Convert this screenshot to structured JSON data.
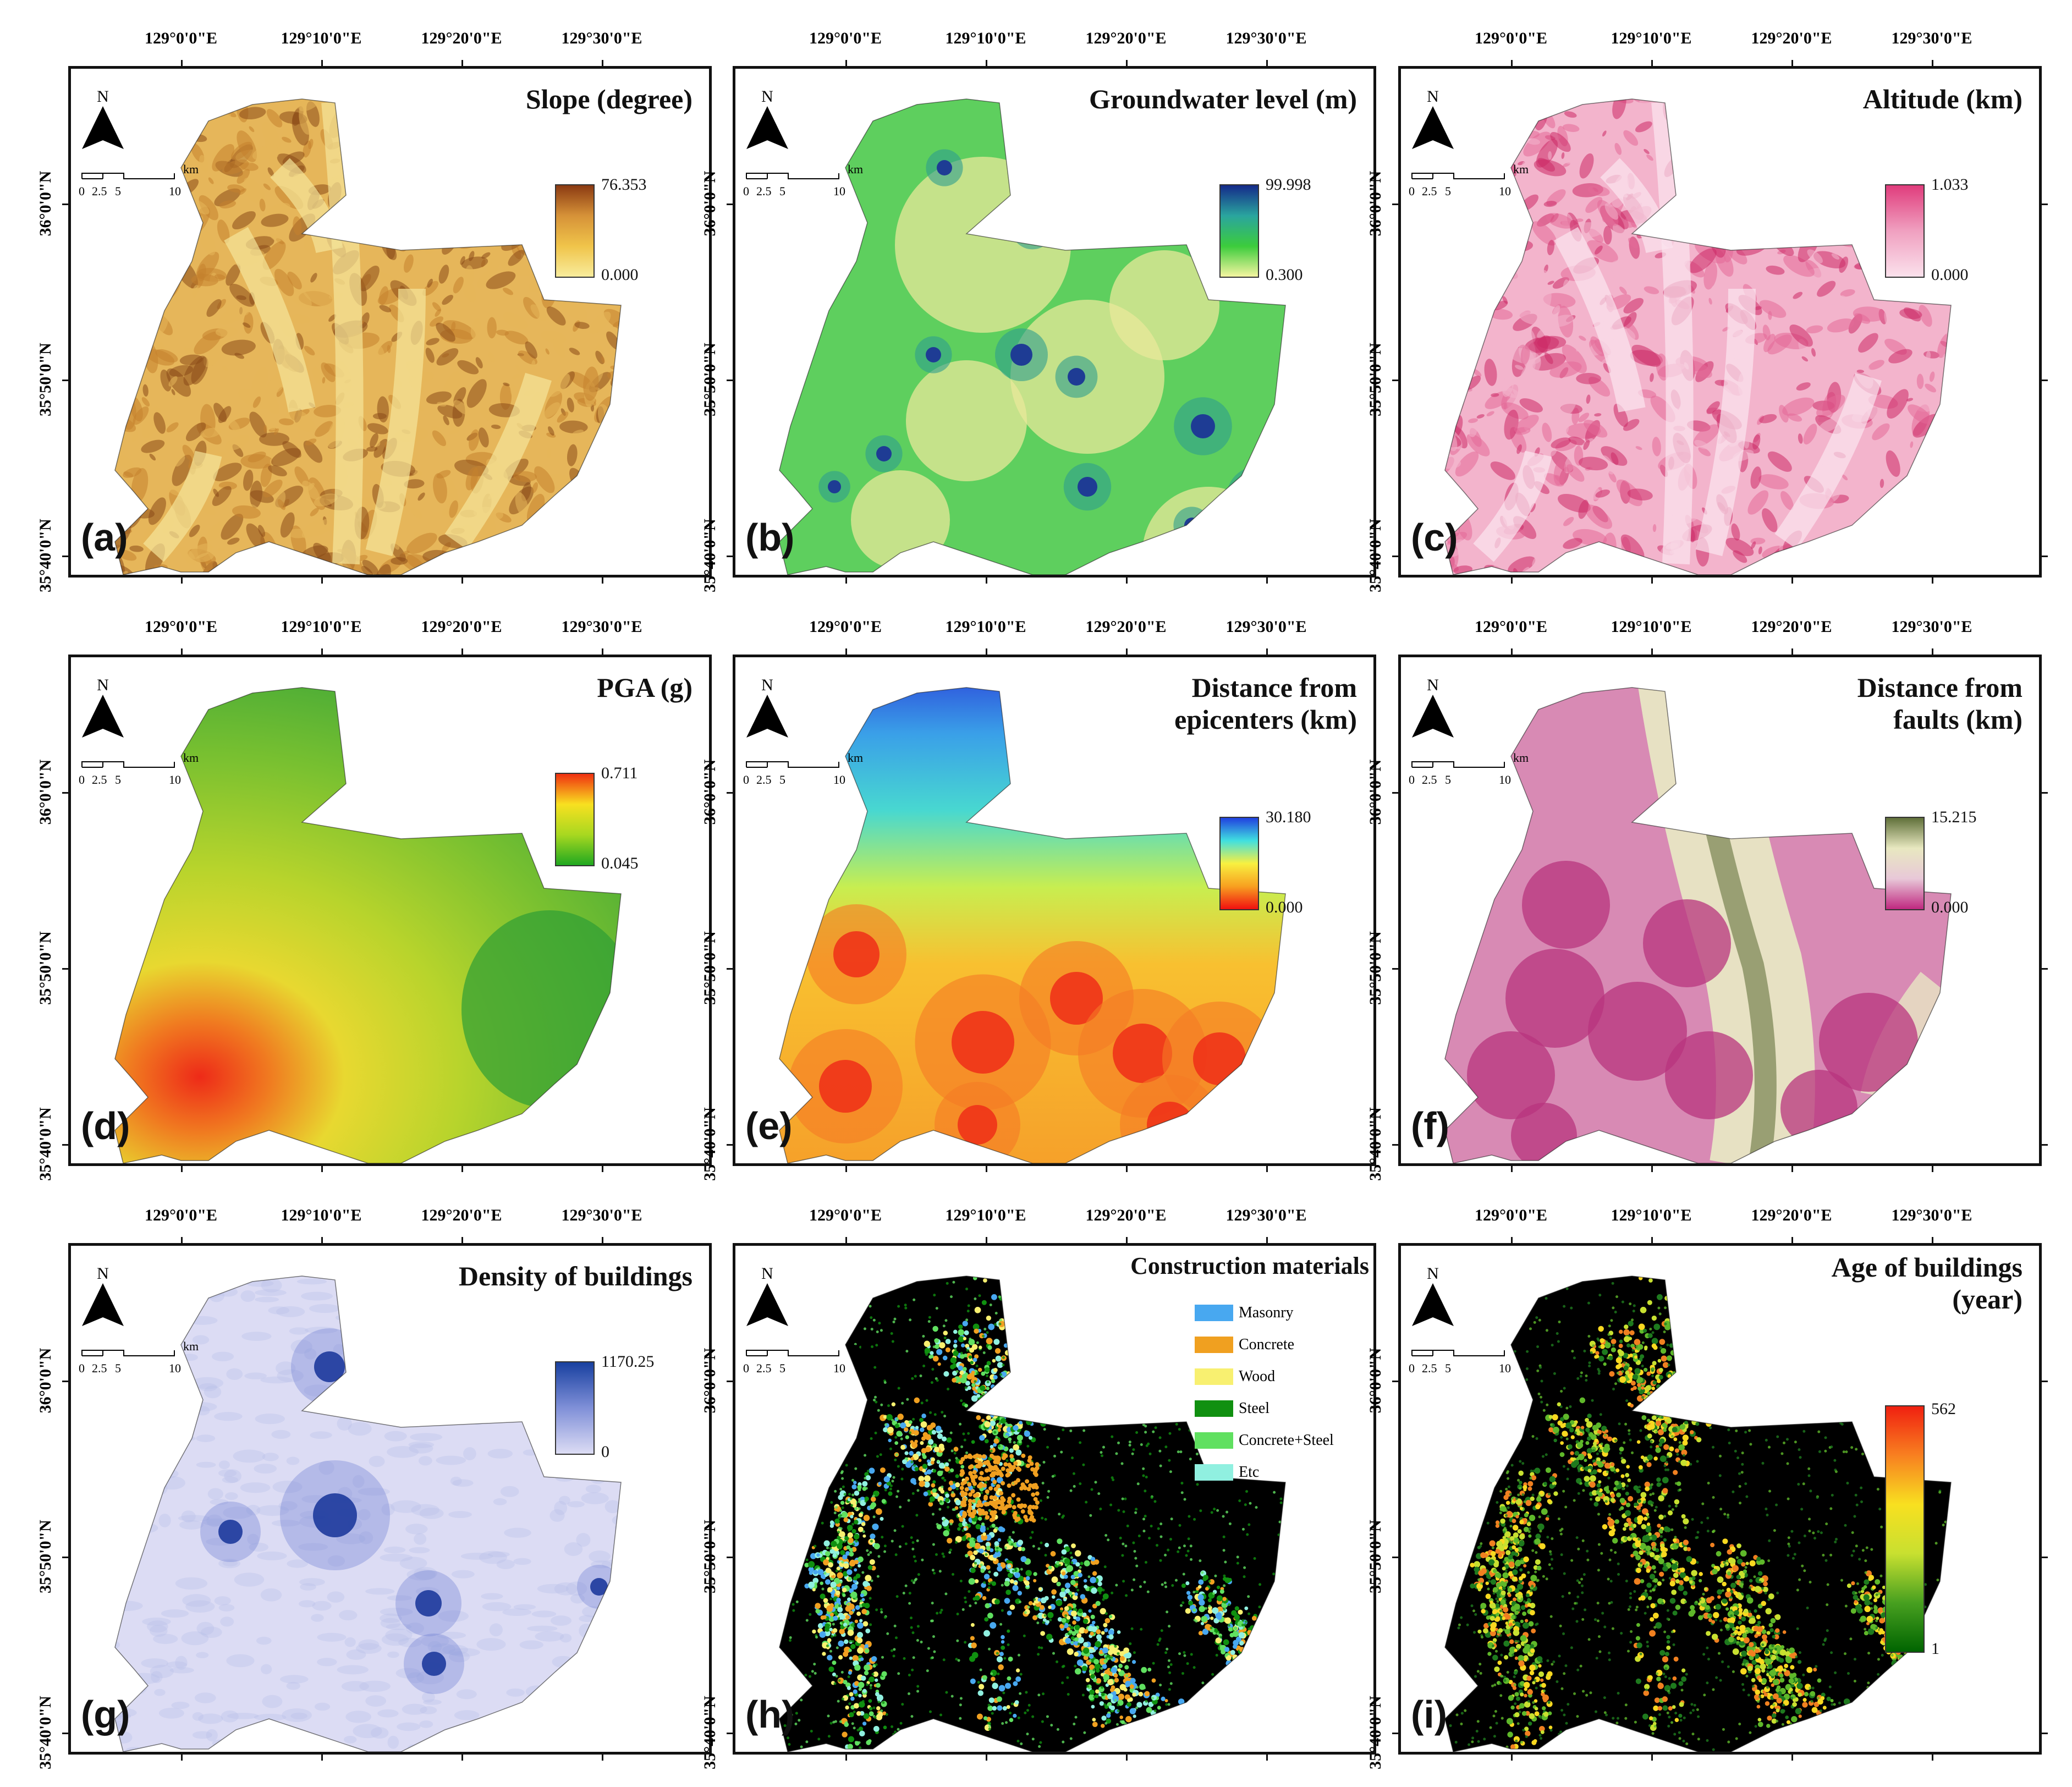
{
  "axes": {
    "longitudes": [
      "129°0'0\"E",
      "129°10'0\"E",
      "129°20'0\"E",
      "129°30'0\"E"
    ],
    "latitudes": [
      "36°0'0\"N",
      "35°50'0\"N",
      "35°40'0\"N"
    ]
  },
  "north_label": "N",
  "scale_bar": {
    "ticks": [
      "0",
      "2.5",
      "5",
      "10"
    ],
    "unit": "km"
  },
  "panels": [
    {
      "id": "a",
      "label": "(a)",
      "title": [
        "Slope (degree)"
      ],
      "legend": {
        "type": "gradient",
        "max": "76.353",
        "min": "0.000",
        "colors": [
          "#f8ec9c",
          "#f0c44a",
          "#d69238",
          "#8b3a12"
        ]
      },
      "map": {
        "type": "terrain",
        "colors": [
          "#f5e69a",
          "#e6b65a",
          "#c4822e",
          "#8a4a18"
        ]
      }
    },
    {
      "id": "b",
      "label": "(b)",
      "title": [
        "Groundwater level (m)"
      ],
      "legend": {
        "type": "gradient",
        "max": "99.998",
        "min": "0.300",
        "colors": [
          "#f5f5a0",
          "#3ccc3c",
          "#2aa59e",
          "#142a8a"
        ]
      },
      "map": {
        "type": "groundwater",
        "colors": [
          "#e8e89a",
          "#5ecf5e",
          "#2e9e8e",
          "#1e3c94"
        ]
      }
    },
    {
      "id": "c",
      "label": "(c)",
      "title": [
        "Altitude (km)"
      ],
      "legend": {
        "type": "gradient",
        "max": "1.033",
        "min": "0.000",
        "colors": [
          "#fbe1ec",
          "#f0a0c0",
          "#e03c7c"
        ]
      },
      "map": {
        "type": "altitude",
        "colors": [
          "#fbe6ef",
          "#f3b4cc",
          "#e46a98",
          "#cc2a66"
        ]
      }
    },
    {
      "id": "d",
      "label": "(d)",
      "title": [
        "PGA (g)"
      ],
      "legend": {
        "type": "gradient",
        "max": "0.711",
        "min": "0.045",
        "colors": [
          "#20a820",
          "#a8d820",
          "#f8e020",
          "#f03010"
        ]
      },
      "map": {
        "type": "pga",
        "colors": [
          "#3aa83a",
          "#9ccc30",
          "#e8e030",
          "#ee3020"
        ]
      }
    },
    {
      "id": "e",
      "label": "(e)",
      "title": [
        "Distance from",
        "epicenters (km)"
      ],
      "legend": {
        "type": "gradient",
        "max": "30.180",
        "min": "0.000",
        "colors": [
          "#f01010",
          "#f8a020",
          "#f8f040",
          "#40e0e0",
          "#2040e0"
        ]
      },
      "map": {
        "type": "epicenter",
        "colors": [
          "#ee3a1a",
          "#f6a02a",
          "#f0e64a",
          "#4ad6dc",
          "#2a44d8"
        ]
      }
    },
    {
      "id": "f",
      "label": "(f)",
      "title": [
        "Distance from",
        "faults (km)"
      ],
      "legend": {
        "type": "gradient",
        "max": "15.215",
        "min": "0.000",
        "colors": [
          "#c02880",
          "#e8c8d8",
          "#e8e8c0",
          "#60703a"
        ]
      },
      "map": {
        "type": "fault",
        "colors": [
          "#b8347e",
          "#d88ab4",
          "#e8e6c4",
          "#66733e"
        ]
      }
    },
    {
      "id": "g",
      "label": "(g)",
      "title": [
        "Density of buildings"
      ],
      "legend": {
        "type": "gradient",
        "max": "1170.25",
        "min": "0",
        "colors": [
          "#dcdcf4",
          "#8090d8",
          "#1840a0"
        ]
      },
      "map": {
        "type": "density",
        "colors": [
          "#dcdcf4",
          "#b8bfe8",
          "#6a7cd0",
          "#1d3a9c"
        ]
      }
    },
    {
      "id": "h",
      "label": "(h)",
      "title": [
        "Construction materials"
      ],
      "legend": {
        "type": "categorical",
        "items": [
          {
            "name": "Masonry",
            "color": "#48a8f0"
          },
          {
            "name": "Concrete",
            "color": "#f0a020"
          },
          {
            "name": "Wood",
            "color": "#f8f070"
          },
          {
            "name": "Steel",
            "color": "#109010"
          },
          {
            "name": "Concrete+Steel",
            "color": "#60e060"
          },
          {
            "name": "Etc",
            "color": "#90f0e0"
          }
        ]
      },
      "map": {
        "type": "points",
        "colors": [
          "#000000",
          "#48a8f0",
          "#f0a020",
          "#f8f070",
          "#109010",
          "#60e060",
          "#90f0e0"
        ]
      }
    },
    {
      "id": "i",
      "label": "(i)",
      "title": [
        "Age of buildings",
        "(year)"
      ],
      "legend": {
        "type": "gradient",
        "max": "562",
        "min": "1",
        "colors": [
          "#006400",
          "#48a020",
          "#c8e030",
          "#f8e020",
          "#f88020",
          "#f02010"
        ]
      },
      "map": {
        "type": "agepoints",
        "colors": [
          "#000000",
          "#1e7a1e",
          "#5fb82a",
          "#c8e030",
          "#f8d820",
          "#f08020"
        ]
      }
    }
  ]
}
